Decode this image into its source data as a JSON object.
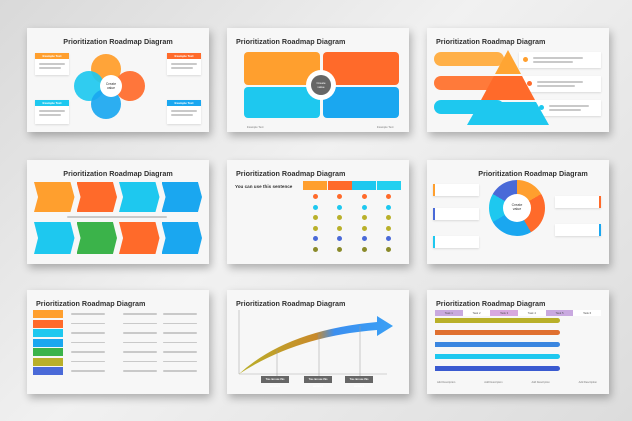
{
  "slide_title": "Prioritization Roadmap Diagram",
  "center_label": "Create value",
  "example_text": "Example Text",
  "add_description": "Add Description",
  "sentence_heading": "You can use this sentence",
  "you_can_use": "You can use this sentence",
  "tasks": [
    "Task 1",
    "Task 2",
    "Task 3",
    "Task 4",
    "Task 5",
    "Task 6"
  ],
  "colors": {
    "orange": "#ff9f2e",
    "red_orange": "#ff6a2a",
    "cyan": "#1ec8ef",
    "blue": "#1aa7f0",
    "olive": "#b9b02a",
    "indigo": "#4a6ad8",
    "gray": "#666666"
  }
}
